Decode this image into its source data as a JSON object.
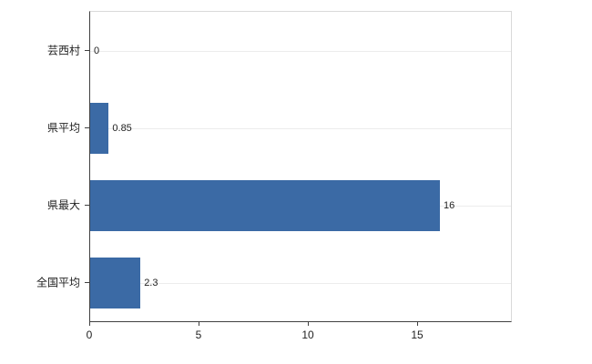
{
  "chart_data": {
    "type": "bar",
    "orientation": "horizontal",
    "title": "",
    "xlabel": "",
    "ylabel": "",
    "categories": [
      "芸西村",
      "県平均",
      "県最大",
      "全国平均"
    ],
    "values": [
      0,
      0.85,
      16,
      2.3
    ],
    "value_labels": [
      "0",
      "0.85",
      "16",
      "2.3"
    ],
    "x_ticks": [
      0,
      5,
      10,
      15
    ],
    "x_tick_labels": [
      "0",
      "5",
      "10",
      "15"
    ],
    "xlim": [
      0,
      19.25
    ],
    "bar_color": "#3b6aa5",
    "grid": "horizontal-category-lines",
    "legend_position": "none"
  }
}
